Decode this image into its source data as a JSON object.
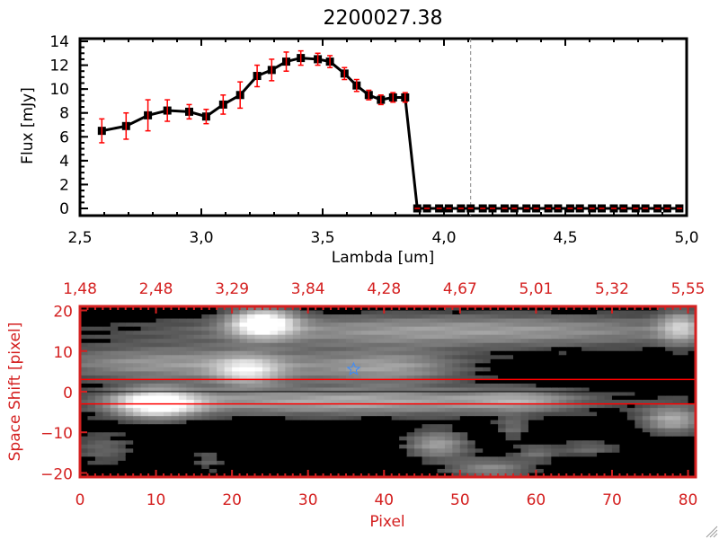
{
  "chart_data": [
    {
      "type": "line",
      "title": "2200027.38",
      "xlabel": "Lambda [um]",
      "ylabel": "Flux [mJy]",
      "xlim": [
        2.5,
        5.0
      ],
      "ylim": [
        0,
        14
      ],
      "xticks": [
        "2.5",
        "3.0",
        "3.5",
        "4.0",
        "4.5",
        "5.0"
      ],
      "yticks": [
        "0",
        "2",
        "4",
        "6",
        "8",
        "10",
        "12",
        "14"
      ],
      "vertical_dashed_line_x": 4.11,
      "marker": "square",
      "line_color": "#000000",
      "errorbar_color": "#ff0000",
      "series": [
        {
          "x": [
            2.59,
            2.69,
            2.78,
            2.86,
            2.95,
            3.02,
            3.09,
            3.16,
            3.23,
            3.29,
            3.35,
            3.41,
            3.48,
            3.53,
            3.59,
            3.64,
            3.69,
            3.74,
            3.79,
            3.84,
            3.89,
            3.93,
            3.98,
            4.02,
            4.07,
            4.11,
            4.16,
            4.2,
            4.25,
            4.29,
            4.34,
            4.38,
            4.43,
            4.47,
            4.52,
            4.56,
            4.61,
            4.65,
            4.7,
            4.74,
            4.79,
            4.83,
            4.88,
            4.92,
            4.97
          ],
          "y": [
            6.5,
            6.9,
            7.8,
            8.2,
            8.1,
            7.7,
            8.7,
            9.5,
            11.1,
            11.6,
            12.3,
            12.6,
            12.5,
            12.3,
            11.3,
            10.3,
            9.5,
            9.1,
            9.3,
            9.3,
            0,
            0,
            0,
            0,
            0,
            0,
            0,
            0,
            0,
            0,
            0,
            0,
            0,
            0,
            0,
            0,
            0,
            0,
            0,
            0,
            0,
            0,
            0,
            0,
            0
          ],
          "yerr": [
            1.0,
            1.1,
            1.3,
            0.9,
            0.6,
            0.6,
            0.8,
            1.1,
            0.9,
            0.9,
            0.8,
            0.6,
            0.5,
            0.5,
            0.5,
            0.5,
            0.4,
            0.4,
            0.4,
            0.4,
            0,
            0,
            0,
            0,
            0,
            0,
            0,
            0,
            0,
            0,
            0,
            0,
            0,
            0,
            0,
            0,
            0,
            0,
            0,
            0,
            0,
            0,
            0,
            0,
            0
          ]
        }
      ]
    },
    {
      "type": "heatmap",
      "xlabel": "Pixel",
      "ylabel": "Space Shift [pixel]",
      "xlim": [
        0,
        81
      ],
      "ylim": [
        -21,
        21
      ],
      "xticks": [
        "0",
        "10",
        "20",
        "30",
        "40",
        "50",
        "60",
        "70",
        "80"
      ],
      "yticks": [
        "-20",
        "-10",
        "0",
        "10",
        "20"
      ],
      "top_xticks": [
        "1.48",
        "2.48",
        "3.29",
        "3.84",
        "4.28",
        "4.67",
        "5.01",
        "5.32",
        "5.55"
      ],
      "colormap": "grayscale",
      "axis_color": "#d42020",
      "horizontal_red_lines_y": [
        3,
        -3
      ],
      "horizontal_black_line_y": 0,
      "star_marker": {
        "x": 36,
        "y": 5.5,
        "color": "#3a8cff"
      }
    }
  ]
}
